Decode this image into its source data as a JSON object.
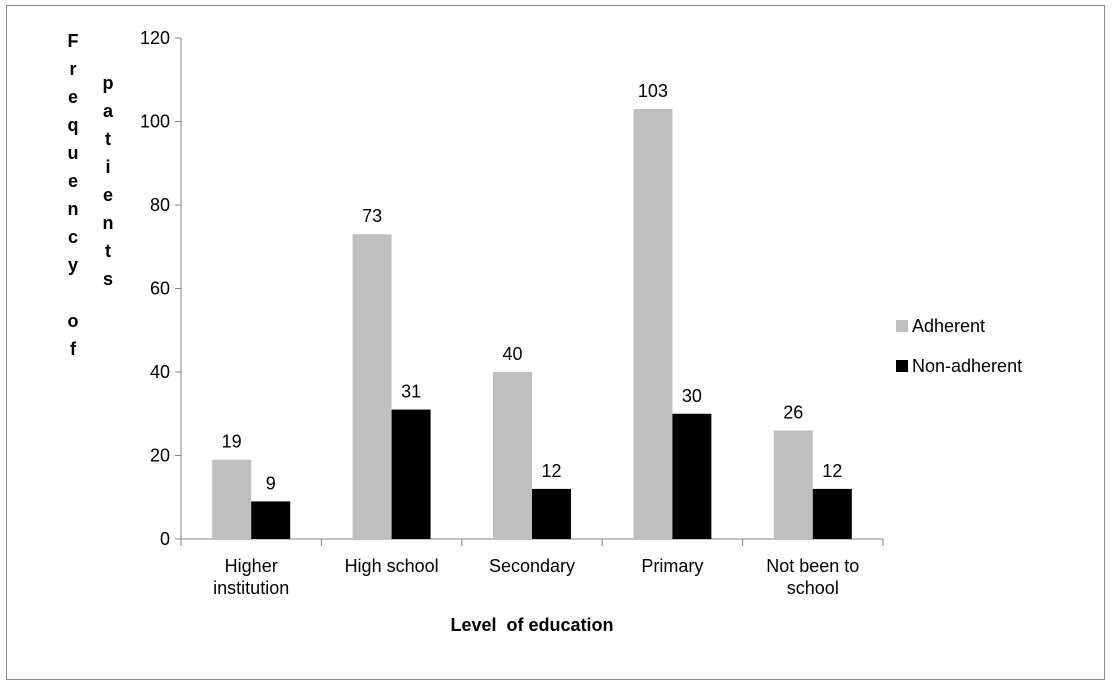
{
  "chart_data": {
    "type": "bar",
    "title": "",
    "xlabel": "Level  of education",
    "ylabel": "Frequency of patients",
    "ylabel_column_1": [
      "F",
      "r",
      "e",
      "q",
      "u",
      "e",
      "n",
      "c",
      "y",
      "",
      "o",
      "f"
    ],
    "ylabel_column_2": [
      "p",
      "a",
      "t",
      "i",
      "e",
      "n",
      "t",
      "s"
    ],
    "categories": [
      [
        "Higher",
        "institution"
      ],
      [
        "High school"
      ],
      [
        "Secondary"
      ],
      [
        "Primary"
      ],
      [
        "Not been to",
        "school"
      ]
    ],
    "ylim": [
      0,
      120
    ],
    "yticks": [
      0,
      20,
      40,
      60,
      80,
      100,
      120
    ],
    "grid": false,
    "legend_position": "right",
    "series": [
      {
        "name": "Adherent",
        "values": [
          19,
          73,
          40,
          103,
          26
        ],
        "color": "#bfbfbf"
      },
      {
        "name": "Non-adherent",
        "values": [
          9,
          31,
          12,
          30,
          12
        ],
        "color": "#000000"
      }
    ]
  }
}
